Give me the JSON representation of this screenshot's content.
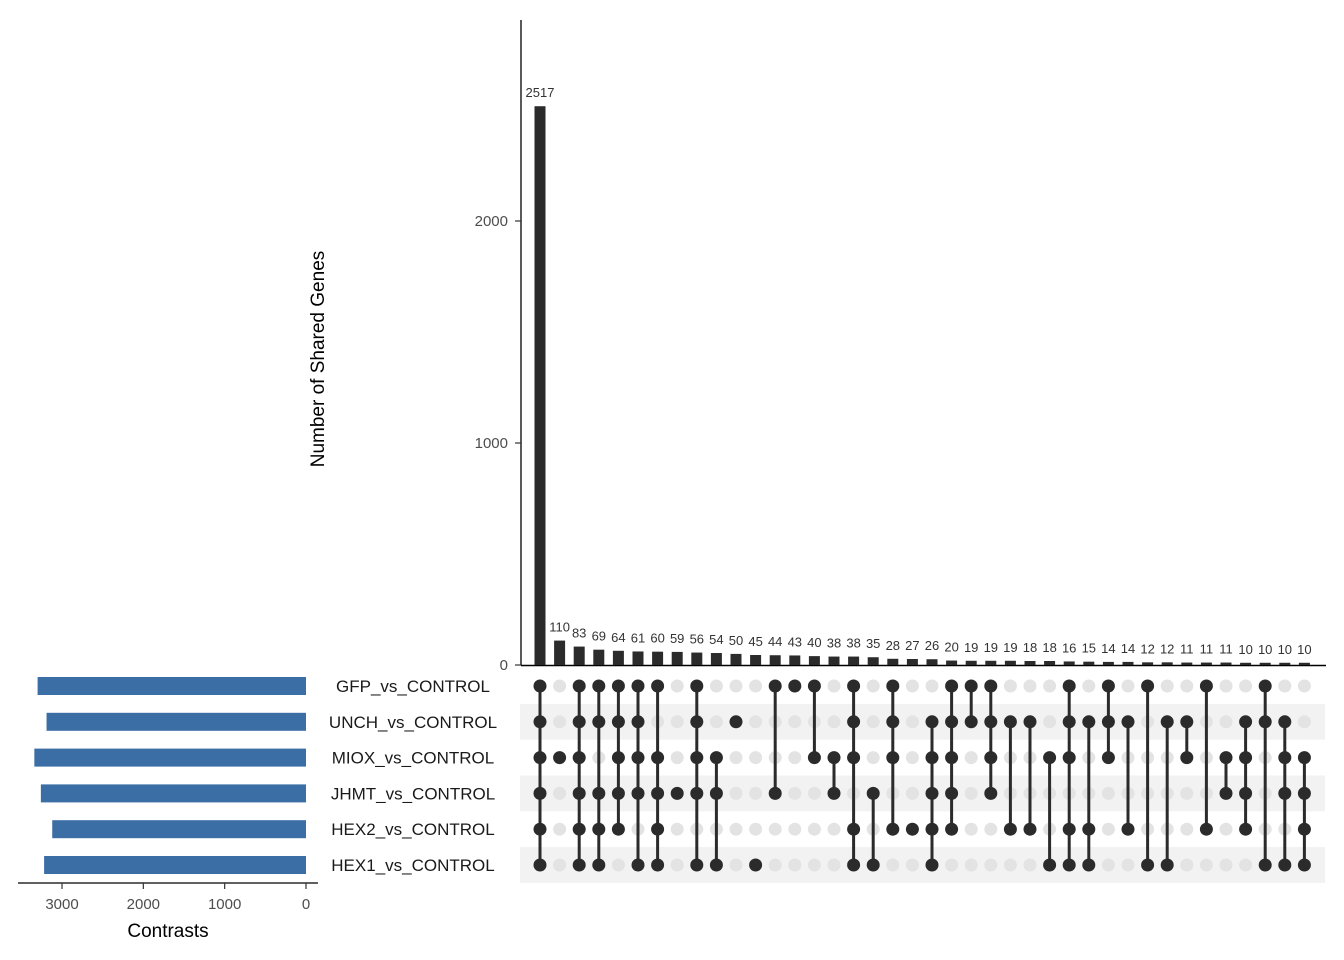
{
  "chart_data": {
    "type": "upset",
    "ylabel": "Number of Shared Genes",
    "ylim": [
      0,
      2850
    ],
    "yticks": [
      0,
      1000,
      2000
    ],
    "set_size_xlabel": "Contrasts",
    "set_size_ticks": [
      3000,
      2000,
      1000,
      0
    ],
    "set_size_xlim": [
      3500,
      0
    ],
    "sets": [
      "GFP_vs_CONTROL",
      "UNCH_vs_CONTROL",
      "MIOX_vs_CONTROL",
      "JHMT_vs_CONTROL",
      "HEX2_vs_CONTROL",
      "HEX1_vs_CONTROL"
    ],
    "set_sizes": [
      3300,
      3190,
      3340,
      3260,
      3120,
      3220
    ],
    "intersections": [
      {
        "count": 2517,
        "sets": [
          0,
          1,
          2,
          3,
          4,
          5
        ]
      },
      {
        "count": 110,
        "sets": [
          2
        ]
      },
      {
        "count": 83,
        "sets": [
          0,
          1,
          2,
          3,
          4,
          5
        ]
      },
      {
        "count": 69,
        "sets": [
          0,
          1,
          3,
          4,
          5
        ]
      },
      {
        "count": 64,
        "sets": [
          0,
          1,
          2,
          3,
          4
        ]
      },
      {
        "count": 61,
        "sets": [
          0,
          1,
          2,
          3,
          5
        ]
      },
      {
        "count": 60,
        "sets": [
          0,
          2,
          3,
          4,
          5
        ]
      },
      {
        "count": 59,
        "sets": [
          3
        ]
      },
      {
        "count": 56,
        "sets": [
          0,
          1,
          2,
          3,
          5
        ]
      },
      {
        "count": 54,
        "sets": [
          2,
          3,
          5
        ]
      },
      {
        "count": 50,
        "sets": [
          1
        ]
      },
      {
        "count": 45,
        "sets": [
          5
        ]
      },
      {
        "count": 44,
        "sets": [
          0,
          3
        ]
      },
      {
        "count": 43,
        "sets": [
          0
        ]
      },
      {
        "count": 40,
        "sets": [
          0,
          2
        ]
      },
      {
        "count": 38,
        "sets": [
          2,
          3
        ]
      },
      {
        "count": 38,
        "sets": [
          0,
          1,
          2,
          4,
          5
        ]
      },
      {
        "count": 35,
        "sets": [
          3,
          5
        ]
      },
      {
        "count": 28,
        "sets": [
          0,
          1,
          2,
          4
        ]
      },
      {
        "count": 27,
        "sets": [
          4
        ]
      },
      {
        "count": 26,
        "sets": [
          1,
          2,
          3,
          4,
          5
        ]
      },
      {
        "count": 20,
        "sets": [
          0,
          1,
          2,
          3,
          4
        ]
      },
      {
        "count": 19,
        "sets": [
          0,
          1
        ]
      },
      {
        "count": 19,
        "sets": [
          0,
          1,
          2,
          3
        ]
      },
      {
        "count": 19,
        "sets": [
          1,
          4
        ]
      },
      {
        "count": 18,
        "sets": [
          1,
          4
        ]
      },
      {
        "count": 18,
        "sets": [
          2,
          5
        ]
      },
      {
        "count": 16,
        "sets": [
          0,
          1,
          2,
          4,
          5
        ]
      },
      {
        "count": 15,
        "sets": [
          1,
          4,
          5
        ]
      },
      {
        "count": 14,
        "sets": [
          0,
          1,
          2
        ]
      },
      {
        "count": 14,
        "sets": [
          1,
          4
        ]
      },
      {
        "count": 12,
        "sets": [
          0,
          5
        ]
      },
      {
        "count": 12,
        "sets": [
          1,
          5
        ]
      },
      {
        "count": 11,
        "sets": [
          1,
          2
        ]
      },
      {
        "count": 11,
        "sets": [
          0,
          4
        ]
      },
      {
        "count": 11,
        "sets": [
          2,
          3
        ]
      },
      {
        "count": 10,
        "sets": [
          1,
          2,
          3,
          4
        ]
      },
      {
        "count": 10,
        "sets": [
          0,
          1,
          5
        ]
      },
      {
        "count": 10,
        "sets": [
          1,
          2,
          3,
          5
        ]
      },
      {
        "count": 10,
        "sets": [
          2,
          3,
          4,
          5
        ]
      }
    ],
    "colors": {
      "bar": "#2b2b2b",
      "set_bar": "#3b6ea5",
      "dot_active": "#2b2b2b",
      "dot_inactive": "#e3e3e3",
      "stripe": "#f2f2f2"
    }
  }
}
